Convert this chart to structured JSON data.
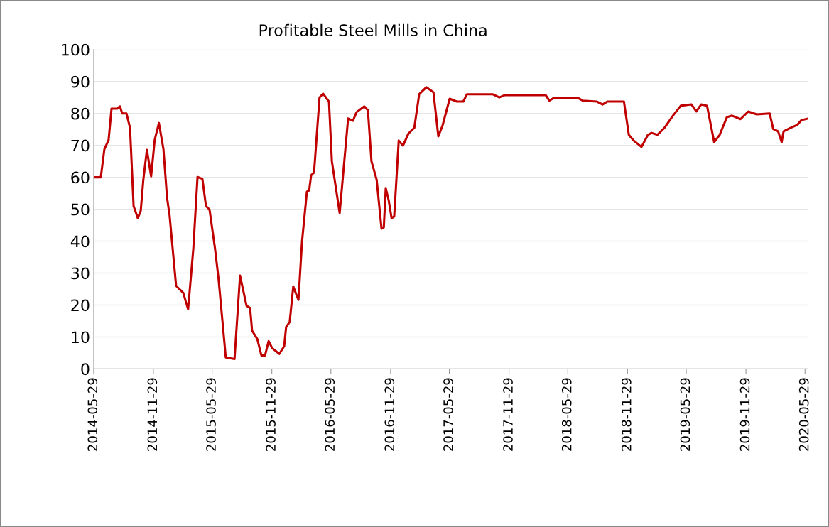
{
  "chart_data": {
    "type": "line",
    "title": "Profitable Steel Mills in China",
    "x": [
      "2014-05-31",
      "2014-06-20",
      "2014-07-01",
      "2014-07-14",
      "2014-07-23",
      "2014-08-09",
      "2014-08-18",
      "2014-08-25",
      "2014-09-07",
      "2014-09-18",
      "2014-09-29",
      "2014-10-12",
      "2014-10-21",
      "2014-10-29",
      "2014-11-09",
      "2014-11-22",
      "2014-12-03",
      "2014-12-16",
      "2014-12-30",
      "2015-01-10",
      "2015-01-18",
      "2015-02-07",
      "2015-03-01",
      "2015-03-16",
      "2015-04-01",
      "2015-04-14",
      "2015-04-29",
      "2015-05-10",
      "2015-05-21",
      "2015-06-07",
      "2015-06-18",
      "2015-07-10",
      "2015-08-06",
      "2015-08-23",
      "2015-09-12",
      "2015-09-23",
      "2015-09-29",
      "2015-10-15",
      "2015-10-28",
      "2015-11-08",
      "2015-11-19",
      "2015-11-30",
      "2015-12-22",
      "2016-01-06",
      "2016-01-12",
      "2016-01-23",
      "2016-02-03",
      "2016-02-19",
      "2016-03-01",
      "2016-03-16",
      "2016-03-23",
      "2016-03-29",
      "2016-04-07",
      "2016-04-24",
      "2016-05-05",
      "2016-05-23",
      "2016-06-01",
      "2016-06-25",
      "2016-07-21",
      "2016-08-05",
      "2016-08-16",
      "2016-09-09",
      "2016-09-20",
      "2016-10-01",
      "2016-10-17",
      "2016-11-01",
      "2016-11-08",
      "2016-11-14",
      "2016-11-23",
      "2016-12-02",
      "2016-12-10",
      "2016-12-24",
      "2017-01-06",
      "2017-01-23",
      "2017-02-10",
      "2017-02-25",
      "2017-03-19",
      "2017-04-10",
      "2017-04-25",
      "2017-05-08",
      "2017-05-30",
      "2017-06-21",
      "2017-07-11",
      "2017-07-22",
      "2017-08-26",
      "2017-10-09",
      "2017-10-30",
      "2017-11-15",
      "2018-03-22",
      "2018-04-02",
      "2018-04-17",
      "2018-06-28",
      "2018-07-14",
      "2018-08-27",
      "2018-09-13",
      "2018-09-28",
      "2018-11-18",
      "2018-12-03",
      "2018-12-18",
      "2019-01-11",
      "2019-01-31",
      "2019-02-11",
      "2019-03-01",
      "2019-03-23",
      "2019-04-18",
      "2019-05-12",
      "2019-06-14",
      "2019-06-29",
      "2019-07-14",
      "2019-08-01",
      "2019-08-23",
      "2019-09-09",
      "2019-10-01",
      "2019-10-17",
      "2019-11-12",
      "2019-12-06",
      "2020-01-01",
      "2020-02-10",
      "2020-02-21",
      "2020-03-07",
      "2020-03-18",
      "2020-03-24",
      "2020-04-15",
      "2020-05-05",
      "2020-05-18",
      "2020-06-07"
    ],
    "series": [
      {
        "color": "#c00000",
        "values": [
          60,
          60,
          68.8,
          71.7,
          81.5,
          81.5,
          82.2,
          80,
          80,
          75.5,
          51,
          47.2,
          49.5,
          59.2,
          68.6,
          60.3,
          71.7,
          77,
          68.8,
          53.7,
          48,
          26,
          23.8,
          18.7,
          37.6,
          60.1,
          59.5,
          51,
          49.9,
          37.6,
          28,
          3.6,
          3.1,
          29.2,
          19.8,
          19.1,
          12,
          9.4,
          4.2,
          4.2,
          8.7,
          6.5,
          4.7,
          7.1,
          13.1,
          14.7,
          25.8,
          21.6,
          39.9,
          55.5,
          55.9,
          60.6,
          61.5,
          85,
          86.2,
          83.7,
          65,
          48.8,
          78.4,
          77.7,
          80.4,
          82.2,
          81,
          65,
          59.2,
          43.9,
          44.3,
          56.6,
          52.8,
          47.2,
          47.7,
          71.5,
          69.9,
          73.7,
          75.5,
          86,
          88.2,
          86.6,
          72.8,
          76.2,
          84.6,
          83.7,
          83.7,
          86,
          86,
          86,
          85,
          85.7,
          85.7,
          84,
          84.9,
          84.9,
          84,
          83.7,
          82.8,
          83.7,
          83.7,
          73.3,
          71.5,
          69.5,
          73.3,
          73.9,
          73.3,
          75.5,
          79.3,
          82.4,
          82.8,
          80.6,
          82.8,
          82.4,
          71,
          73.3,
          78.8,
          79.3,
          78.2,
          80.6,
          79.7,
          80,
          75.1,
          74.4,
          71,
          74.4,
          75.5,
          76.4,
          77.9,
          78.4
        ]
      }
    ],
    "xlim": [
      "2014-05-29",
      "2020-06-08"
    ],
    "xticks": [
      "2014-05-29",
      "2014-11-29",
      "2015-05-29",
      "2015-11-29",
      "2016-05-29",
      "2016-11-29",
      "2017-05-29",
      "2017-11-29",
      "2018-05-29",
      "2018-11-29",
      "2019-05-29",
      "2019-11-29",
      "2020-05-29"
    ],
    "ylim": [
      0,
      100
    ],
    "yticks": [
      0,
      10,
      20,
      30,
      40,
      50,
      60,
      70,
      80,
      90,
      100
    ],
    "grid": "y",
    "legend": false
  }
}
